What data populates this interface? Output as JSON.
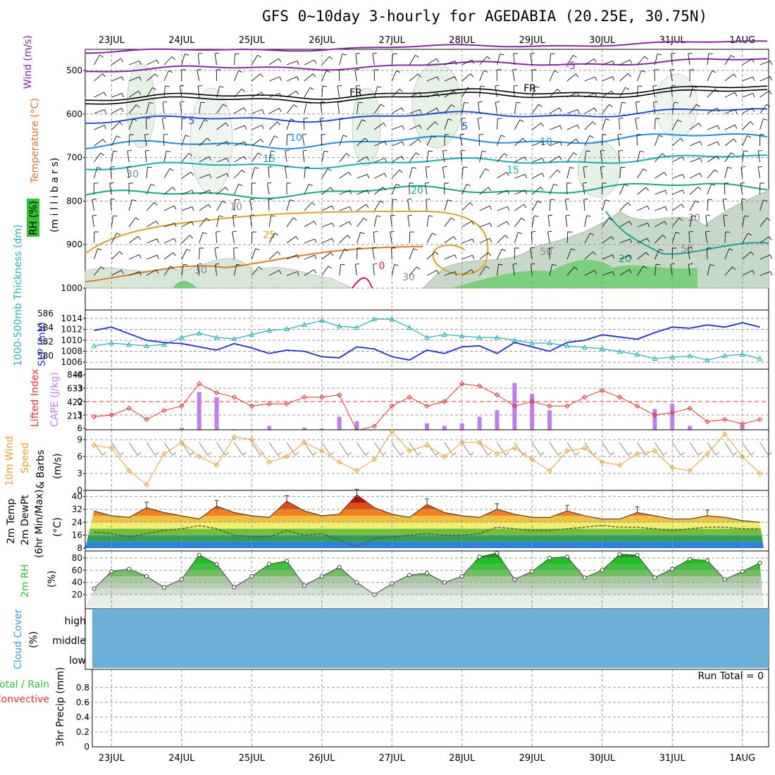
{
  "title": "GFS 0~10day 3-hourly for AGEDABIA (20.25E, 30.75N)",
  "days": [
    "23JUL",
    "24JUL",
    "25JUL",
    "26JUL",
    "27JUL",
    "28JUL",
    "29JUL",
    "30JUL",
    "31JUL",
    "1AUG"
  ],
  "colors": {
    "frame": "#000000",
    "grid": "#999999",
    "cloud": "#6baed6",
    "slp": "#1f2fc8",
    "thick": "#20b2b2",
    "li": "#e03030",
    "cape": "#c27cf0",
    "wind": "#e8a030",
    "rh": "#30c030"
  },
  "panels": {
    "upper": {
      "label_temp": "Temperature (°C)",
      "label_wind": "Wind (m/s)",
      "label_rh": "RH (%)",
      "label_p": "(m i l l i b a r s)",
      "yticks": [
        "500",
        "600",
        "700",
        "800",
        "900",
        "1000"
      ],
      "levels": [
        "-5",
        "FR",
        "FR",
        "5",
        "5",
        "10",
        "10",
        "15",
        "15",
        "20",
        "20",
        "25",
        "0",
        "30",
        "30",
        "50",
        "50",
        "10",
        "30",
        "30"
      ]
    },
    "slp": {
      "label_thick": "1000-500mb Thickness (dm)",
      "label_slp": "SLP (mb)",
      "yticks_left": [
        "586",
        "584",
        "582",
        "580"
      ],
      "yticks_right": [
        "1014",
        "1012",
        "1010",
        "1008",
        "1006"
      ]
    },
    "li": {
      "label_li": "Lifted Index",
      "label_cape": "CAPE (J/kg)",
      "yticks_left": [
        "-6",
        "-3",
        "0",
        "3",
        "6"
      ],
      "yticks_right": [
        "844",
        "633",
        "422",
        "211"
      ]
    },
    "wind": {
      "label_a": "10m Wind",
      "label_b": "Speed",
      "label_c": "& Barbs",
      "label_u": "(m/s)",
      "yticks": [
        "9",
        "6",
        "3",
        "0"
      ]
    },
    "temp": {
      "label_a": "2m Temp",
      "label_b": "2m DewPt",
      "label_c": "(6hr Min/Max)",
      "label_u": "(°C)",
      "yticks": [
        "40",
        "32",
        "24",
        "16",
        "8"
      ]
    },
    "rh2m": {
      "label": "2m RH",
      "label_u": "(%)",
      "yticks": [
        "80",
        "60",
        "40",
        "20"
      ]
    },
    "cloud": {
      "label": "Cloud Cover",
      "label_u": "(%)",
      "rows": [
        "high",
        "middle",
        "low"
      ]
    },
    "precip": {
      "label_a": "Total / Rain",
      "label_b": "Convective",
      "label_c": "3hr Precip (mm)",
      "yticks": [
        "0.8",
        "0.6",
        "0.4",
        "0.2",
        "0"
      ],
      "run_total": "Run Total = 0"
    }
  },
  "chart_data": [
    {
      "type": "line",
      "name": "SLP and 1000-500mb thickness",
      "x": [
        "22JUL18",
        "23JUL00",
        "23JUL06",
        "23JUL12",
        "23JUL18",
        "24JUL00",
        "24JUL06",
        "24JUL12",
        "24JUL18",
        "25JUL00",
        "25JUL06",
        "25JUL12",
        "25JUL18",
        "26JUL00",
        "26JUL06",
        "26JUL12",
        "26JUL18",
        "27JUL00",
        "27JUL06",
        "27JUL12",
        "27JUL18",
        "28JUL00",
        "28JUL06",
        "28JUL12",
        "28JUL18",
        "29JUL00",
        "29JUL06",
        "29JUL12",
        "29JUL18",
        "30JUL00",
        "30JUL06",
        "30JUL12",
        "30JUL18",
        "31JUL00",
        "31JUL06",
        "31JUL12",
        "31JUL18",
        "1AUG00",
        "1AUG06"
      ],
      "series": [
        {
          "name": "SLP (mb)",
          "values": [
            1011.8,
            1012.4,
            1011.2,
            1010.0,
            1009.6,
            1009.4,
            1008.8,
            1008.2,
            1009.4,
            1008.6,
            1007.6,
            1008.2,
            1008.0,
            1007.0,
            1006.8,
            1008.8,
            1008.4,
            1007.0,
            1006.4,
            1008.2,
            1007.6,
            1008.8,
            1009.0,
            1007.6,
            1009.6,
            1008.8,
            1008.0,
            1009.6,
            1010.0,
            1011.0,
            1010.6,
            1010.2,
            1011.4,
            1012.4,
            1012.2,
            1012.8,
            1012.4,
            1013.2,
            1012.4
          ]
        },
        {
          "name": "Thickness (dm)",
          "values": [
            581.4,
            581.8,
            581.6,
            581.4,
            581.6,
            582.6,
            583.2,
            582.6,
            582.4,
            583.0,
            583.6,
            583.8,
            584.4,
            585.0,
            584.2,
            584.0,
            585.2,
            585.2,
            584.0,
            582.6,
            583.0,
            582.8,
            582.6,
            582.6,
            582.2,
            581.8,
            581.8,
            581.4,
            581.2,
            581.0,
            580.6,
            580.2,
            579.6,
            579.8,
            580.0,
            579.4,
            580.0,
            580.2,
            579.6
          ]
        }
      ],
      "yticks_slp": [
        1006,
        1008,
        1010,
        1012,
        1014
      ],
      "yticks_thickness": [
        580,
        582,
        584,
        586
      ]
    },
    {
      "type": "bar",
      "name": "Lifted Index and CAPE",
      "x": [
        "22JUL18",
        "23JUL00",
        "23JUL06",
        "23JUL12",
        "23JUL18",
        "24JUL00",
        "24JUL06",
        "24JUL12",
        "24JUL18",
        "25JUL00",
        "25JUL06",
        "25JUL12",
        "25JUL18",
        "26JUL00",
        "26JUL06",
        "26JUL12",
        "26JUL18",
        "27JUL00",
        "27JUL06",
        "27JUL12",
        "27JUL18",
        "28JUL00",
        "28JUL06",
        "28JUL12",
        "28JUL18",
        "29JUL00",
        "29JUL06",
        "29JUL12",
        "29JUL18",
        "30JUL00",
        "30JUL06",
        "30JUL12",
        "30JUL18",
        "31JUL00",
        "31JUL06",
        "31JUL12",
        "31JUL18",
        "1AUG00",
        "1AUG06"
      ],
      "series": [
        {
          "name": "Lifted Index",
          "values": [
            3.4,
            3.0,
            1.5,
            4.0,
            2.0,
            1.0,
            -4.0,
            -2.0,
            -1.0,
            1.0,
            0.5,
            0.5,
            -1.0,
            -1.0,
            -1.5,
            6.5,
            5.5,
            1.0,
            -1.0,
            1.0,
            0.0,
            -4.0,
            -3.5,
            -1.5,
            1.0,
            0.0,
            1.0,
            1.0,
            -1.0,
            -2.5,
            -1.0,
            1.0,
            3.0,
            2.5,
            1.5,
            4.5,
            4.0,
            5.0,
            4.0
          ]
        },
        {
          "name": "CAPE (J/kg)",
          "values": [
            0,
            0,
            0,
            0,
            0,
            30,
            580,
            500,
            10,
            0,
            60,
            0,
            30,
            20,
            200,
            130,
            0,
            0,
            0,
            100,
            60,
            100,
            200,
            300,
            720,
            550,
            300,
            0,
            0,
            0,
            0,
            0,
            320,
            400,
            60,
            0,
            0,
            70,
            0
          ]
        }
      ],
      "yticks_li": [
        -6,
        -3,
        0,
        3,
        6
      ],
      "yticks_cape": [
        211,
        422,
        633,
        844
      ]
    },
    {
      "type": "line",
      "name": "10m wind speed",
      "x": [
        "22JUL18",
        "23JUL00",
        "23JUL06",
        "23JUL12",
        "23JUL18",
        "24JUL00",
        "24JUL06",
        "24JUL12",
        "24JUL18",
        "25JUL00",
        "25JUL06",
        "25JUL12",
        "25JUL18",
        "26JUL00",
        "26JUL06",
        "26JUL12",
        "26JUL18",
        "27JUL00",
        "27JUL06",
        "27JUL12",
        "27JUL18",
        "28JUL00",
        "28JUL06",
        "28JUL12",
        "28JUL18",
        "29JUL00",
        "29JUL06",
        "29JUL12",
        "29JUL18",
        "30JUL00",
        "30JUL06",
        "30JUL12",
        "30JUL18",
        "31JUL00",
        "31JUL06",
        "31JUL12",
        "31JUL18",
        "1AUG00",
        "1AUG06"
      ],
      "series": [
        {
          "name": "Speed (m/s)",
          "values": [
            8.0,
            7.5,
            3.5,
            1.0,
            6.5,
            8.5,
            6.0,
            4.5,
            9.5,
            9.0,
            5.0,
            6.0,
            8.5,
            7.0,
            5.0,
            3.5,
            5.5,
            10.5,
            7.0,
            8.0,
            6.0,
            8.5,
            8.5,
            6.5,
            7.5,
            5.5,
            3.5,
            7.0,
            7.5,
            5.0,
            4.5,
            6.5,
            7.0,
            4.0,
            3.5,
            6.5,
            10.0,
            6.0,
            3.0
          ]
        }
      ],
      "ylim": [
        0,
        10
      ]
    },
    {
      "type": "area",
      "name": "2m temperature and dewpoint",
      "x": [
        "22JUL18",
        "23JUL00",
        "23JUL06",
        "23JUL12",
        "23JUL18",
        "24JUL00",
        "24JUL06",
        "24JUL12",
        "24JUL18",
        "25JUL00",
        "25JUL06",
        "25JUL12",
        "25JUL18",
        "26JUL00",
        "26JUL06",
        "26JUL12",
        "26JUL18",
        "27JUL00",
        "27JUL06",
        "27JUL12",
        "27JUL18",
        "28JUL00",
        "28JUL06",
        "28JUL12",
        "28JUL18",
        "29JUL00",
        "29JUL06",
        "29JUL12",
        "29JUL18",
        "30JUL00",
        "30JUL06",
        "30JUL12",
        "30JUL18",
        "31JUL00",
        "31JUL06",
        "31JUL12",
        "31JUL18",
        "1AUG00",
        "1AUG06"
      ],
      "series": [
        {
          "name": "2m Temp (°C)",
          "values": [
            31,
            28,
            27,
            33,
            30,
            28,
            26,
            34,
            30,
            28,
            27,
            37,
            31,
            28,
            29,
            41,
            33,
            29,
            27,
            35,
            30,
            28,
            27,
            32,
            29,
            27,
            27,
            31,
            28,
            26,
            26,
            30,
            28,
            26,
            26,
            28,
            27,
            25,
            24
          ]
        },
        {
          "name": "2m DewPt (°C)",
          "values": [
            18,
            17,
            15,
            17,
            19,
            20,
            22,
            20,
            16,
            15,
            15,
            19,
            16,
            17,
            13,
            9,
            14,
            15,
            16,
            17,
            16,
            16,
            17,
            21,
            20,
            19,
            19,
            20,
            21,
            22,
            21,
            21,
            20,
            19,
            20,
            21,
            21,
            20,
            20
          ]
        }
      ],
      "ylim": [
        8,
        42
      ]
    },
    {
      "type": "area",
      "name": "2m relative humidity",
      "x": [
        "22JUL18",
        "23JUL00",
        "23JUL06",
        "23JUL12",
        "23JUL18",
        "24JUL00",
        "24JUL06",
        "24JUL12",
        "24JUL18",
        "25JUL00",
        "25JUL06",
        "25JUL12",
        "25JUL18",
        "26JUL00",
        "26JUL06",
        "26JUL12",
        "26JUL18",
        "27JUL00",
        "27JUL06",
        "27JUL12",
        "27JUL18",
        "28JUL00",
        "28JUL06",
        "28JUL12",
        "28JUL18",
        "29JUL00",
        "29JUL06",
        "29JUL12",
        "29JUL18",
        "30JUL00",
        "30JUL06",
        "30JUL12",
        "30JUL18",
        "31JUL00",
        "31JUL06",
        "31JUL12",
        "31JUL18",
        "1AUG00",
        "1AUG06"
      ],
      "series": [
        {
          "name": "2m RH (%)",
          "values": [
            30,
            58,
            62,
            50,
            32,
            45,
            85,
            70,
            32,
            50,
            70,
            75,
            35,
            50,
            65,
            40,
            20,
            38,
            52,
            55,
            40,
            50,
            82,
            88,
            45,
            58,
            80,
            82,
            48,
            60,
            86,
            85,
            48,
            62,
            78,
            76,
            45,
            58,
            72
          ]
        }
      ],
      "ylim": [
        10,
        90
      ]
    },
    {
      "type": "table",
      "name": "3hr precipitation",
      "x": [
        "22JUL18",
        "23JUL00",
        "23JUL06",
        "23JUL12",
        "23JUL18",
        "24JUL00",
        "24JUL06",
        "24JUL12",
        "24JUL18",
        "25JUL00",
        "25JUL06",
        "25JUL12",
        "25JUL18",
        "26JUL00",
        "26JUL06",
        "26JUL12",
        "26JUL18",
        "27JUL00",
        "27JUL06",
        "27JUL12",
        "27JUL18",
        "28JUL00",
        "28JUL06",
        "28JUL12",
        "28JUL18",
        "29JUL00",
        "29JUL06",
        "29JUL12",
        "29JUL18",
        "30JUL00",
        "30JUL06",
        "30JUL12",
        "30JUL18",
        "31JUL00",
        "31JUL06",
        "31JUL12",
        "31JUL18",
        "1AUG00",
        "1AUG06"
      ],
      "series": [
        {
          "name": "Precip (mm)",
          "values": [
            0,
            0,
            0,
            0,
            0,
            0,
            0,
            0,
            0,
            0,
            0,
            0,
            0,
            0,
            0,
            0,
            0,
            0,
            0,
            0,
            0,
            0,
            0,
            0,
            0,
            0,
            0,
            0,
            0,
            0,
            0,
            0,
            0,
            0,
            0,
            0,
            0,
            0,
            0
          ]
        }
      ],
      "ylim": [
        0,
        1
      ]
    }
  ]
}
